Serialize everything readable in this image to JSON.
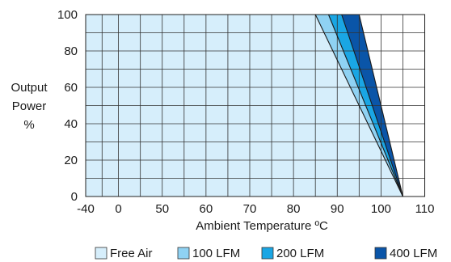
{
  "chart_data": {
    "type": "area",
    "title": "",
    "xlabel": "Ambient Temperature ºC",
    "ylabel_lines": [
      "Output",
      "Power",
      "%"
    ],
    "x_ticks": [
      {
        "label": "-40",
        "value": -40
      },
      {
        "label": "0",
        "value": 0
      },
      {
        "label": "50",
        "value": 50
      },
      {
        "label": "60",
        "value": 60
      },
      {
        "label": "70",
        "value": 70
      },
      {
        "label": "80",
        "value": 80
      },
      {
        "label": "90",
        "value": 90
      },
      {
        "label": "100",
        "value": 100
      },
      {
        "label": "110",
        "value": 110
      }
    ],
    "y_ticks": [
      0,
      20,
      40,
      60,
      80,
      100
    ],
    "ylim": [
      0,
      100
    ],
    "grid": true,
    "legend_position": "bottom",
    "series": [
      {
        "name": "Free Air",
        "color": "#d6eefb",
        "points": [
          [
            -40,
            100
          ],
          [
            85,
            100
          ],
          [
            105,
            0
          ]
        ]
      },
      {
        "name": "100 LFM",
        "color": "#8fd2f3",
        "points": [
          [
            -40,
            100
          ],
          [
            88,
            100
          ],
          [
            105,
            0
          ]
        ]
      },
      {
        "name": "200 LFM",
        "color": "#1aa6e4",
        "points": [
          [
            -40,
            100
          ],
          [
            91,
            100
          ],
          [
            105,
            0
          ]
        ]
      },
      {
        "name": "400 LFM",
        "color": "#0a55a8",
        "points": [
          [
            -40,
            100
          ],
          [
            95,
            100
          ],
          [
            105,
            0
          ]
        ]
      }
    ]
  }
}
